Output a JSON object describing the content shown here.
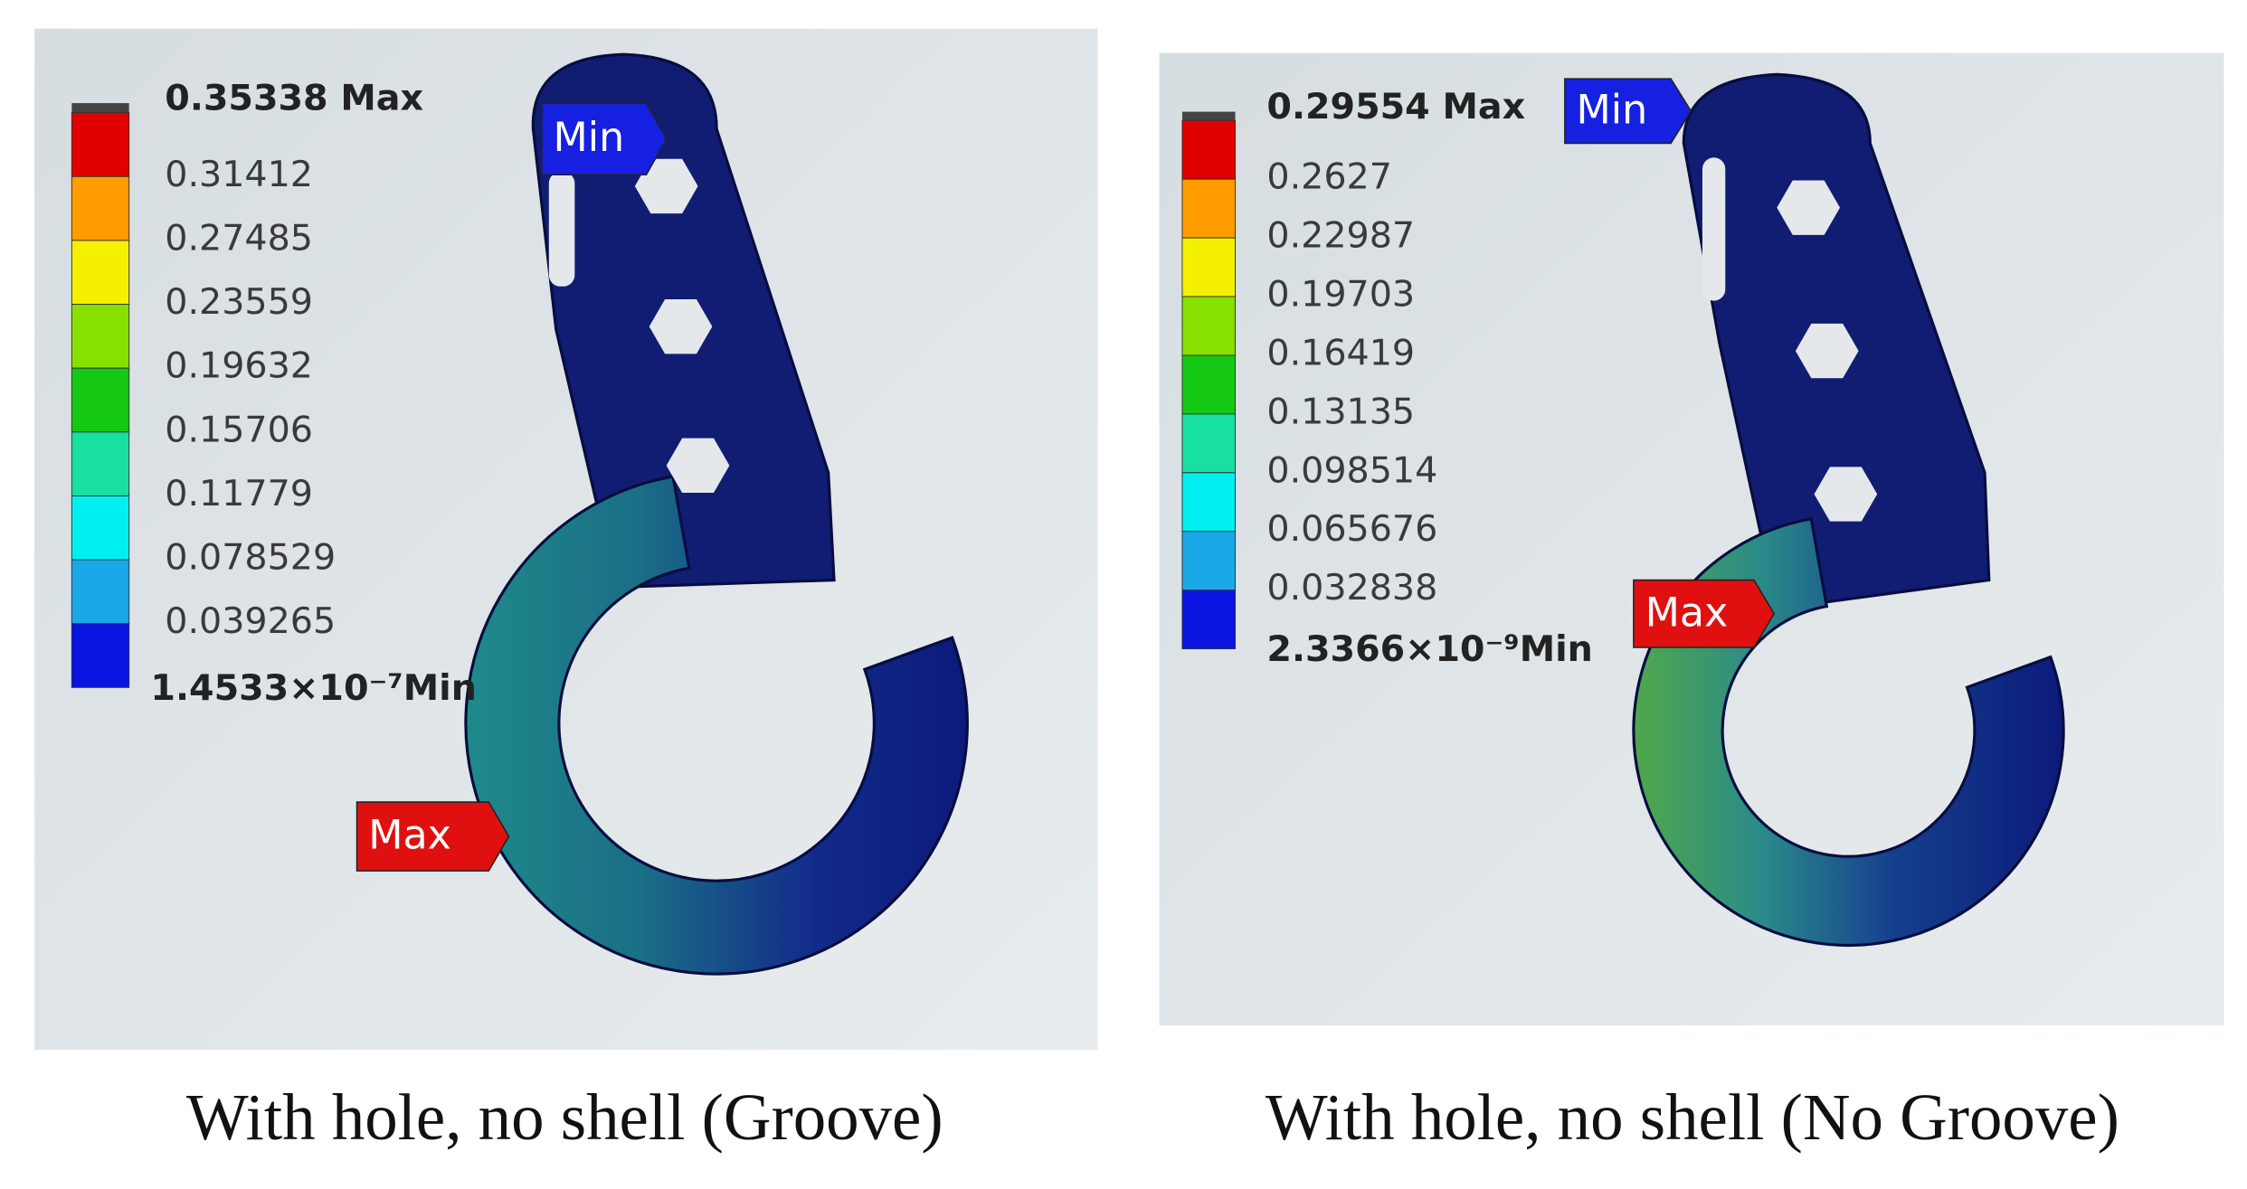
{
  "panels": [
    {
      "caption": "With hole, no shell (Groove)",
      "legend": {
        "max": "0.35338 Max",
        "levels": [
          "0.31412",
          "0.27485",
          "0.23559",
          "0.19632",
          "0.15706",
          "0.11779",
          "0.078529",
          "0.039265"
        ],
        "min": "1.4533×10⁻⁷Min"
      },
      "callouts": {
        "min": "Min",
        "max": "Max"
      }
    },
    {
      "caption": "With hole, no shell (No Groove)",
      "legend": {
        "max": "0.29554 Max",
        "levels": [
          "0.2627",
          "0.22987",
          "0.19703",
          "0.16419",
          "0.13135",
          "0.098514",
          "0.065676",
          "0.032838"
        ],
        "min": "2.3366×10⁻⁹Min"
      },
      "callouts": {
        "min": "Min",
        "max": "Max"
      }
    }
  ]
}
